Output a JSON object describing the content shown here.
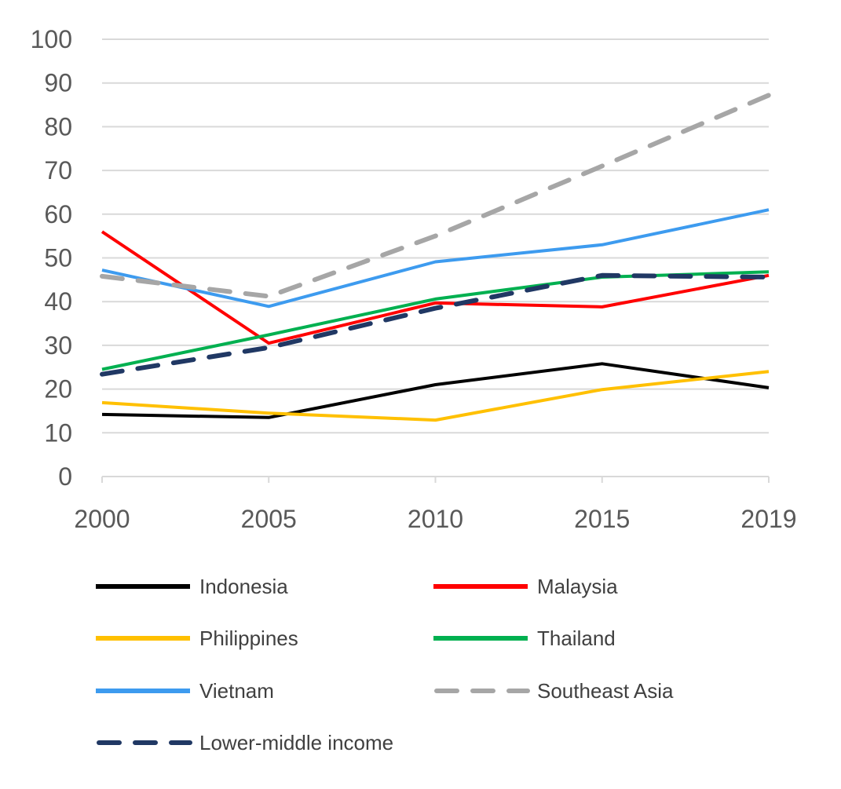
{
  "chart_data": {
    "type": "line",
    "title": "",
    "xlabel": "",
    "ylabel": "",
    "categories": [
      "2000",
      "2005",
      "2010",
      "2015",
      "2019"
    ],
    "y_ticks": [
      "0",
      "10",
      "20",
      "30",
      "40",
      "50",
      "60",
      "70",
      "80",
      "90",
      "100"
    ],
    "ylim": [
      0,
      100
    ],
    "grid": "horizontal",
    "legend_position": "bottom",
    "series": [
      {
        "name": "Indonesia",
        "values": [
          14.2,
          13.5,
          21.0,
          25.8,
          20.3
        ],
        "color": "#000000",
        "dashed": false
      },
      {
        "name": "Malaysia",
        "values": [
          56.0,
          30.5,
          39.7,
          38.8,
          46.0
        ],
        "color": "#ff0000",
        "dashed": false
      },
      {
        "name": "Philippines",
        "values": [
          16.9,
          14.5,
          12.9,
          19.9,
          24.0
        ],
        "color": "#ffc000",
        "dashed": false
      },
      {
        "name": "Thailand",
        "values": [
          24.5,
          32.4,
          40.6,
          45.6,
          46.8
        ],
        "color": "#00b050",
        "dashed": false
      },
      {
        "name": "Vietnam",
        "values": [
          47.2,
          38.9,
          49.1,
          53.0,
          61.0
        ],
        "color": "#3d9bef",
        "dashed": false
      },
      {
        "name": "Southeast Asia",
        "values": [
          45.8,
          41.2,
          55.0,
          71.0,
          87.2
        ],
        "color": "#a6a6a6",
        "dashed": true
      },
      {
        "name": "Lower-middle income",
        "values": [
          23.4,
          29.5,
          38.5,
          46.0,
          45.6
        ],
        "color": "#203864",
        "dashed": true
      }
    ]
  }
}
